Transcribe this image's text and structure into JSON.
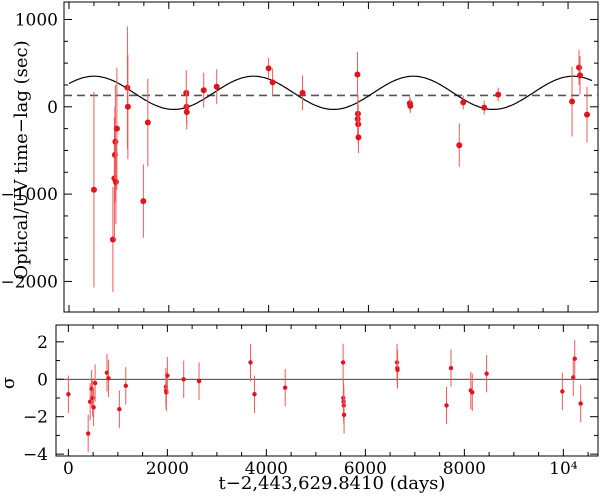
{
  "chart_data": [
    {
      "type": "scatter",
      "panel": "top",
      "xlabel": "",
      "ylabel": "Optical/UV time−lag (sec)",
      "xlim": [
        -100,
        10600
      ],
      "ylim": [
        -2350,
        1200
      ],
      "yticks": [
        1000,
        0,
        -1000,
        -2000
      ],
      "ytick_labels": [
        "1000",
        "0",
        "−1000",
        "−2000"
      ],
      "colors": {
        "points": "#e0141c",
        "error_bars": "#ee5a5a",
        "model": "#000000",
        "mean_line": "#555555"
      },
      "model_curve": {
        "style": "solid",
        "mean": 160,
        "amplitude": 190,
        "period": 3200,
        "peak_at": 3700
      },
      "mean_line": {
        "style": "dashed",
        "y": 130
      },
      "points": [
        {
          "x": 500,
          "y": -950,
          "err": 1120
        },
        {
          "x": 880,
          "y": -1520,
          "err": 600
        },
        {
          "x": 910,
          "y": -820,
          "err": 700
        },
        {
          "x": 920,
          "y": -550,
          "err": 550
        },
        {
          "x": 930,
          "y": -400,
          "err": 650
        },
        {
          "x": 940,
          "y": -860,
          "err": 480
        },
        {
          "x": 960,
          "y": -250,
          "err": 700
        },
        {
          "x": 1170,
          "y": 220,
          "err": 700
        },
        {
          "x": 1180,
          "y": 0,
          "err": 600
        },
        {
          "x": 1490,
          "y": -1080,
          "err": 420
        },
        {
          "x": 1580,
          "y": -180,
          "err": 500
        },
        {
          "x": 2350,
          "y": 160,
          "err": 260
        },
        {
          "x": 2355,
          "y": 0,
          "err": 200
        },
        {
          "x": 2360,
          "y": -60,
          "err": 200
        },
        {
          "x": 2700,
          "y": 190,
          "err": 200
        },
        {
          "x": 2960,
          "y": 230,
          "err": 200
        },
        {
          "x": 4000,
          "y": 440,
          "err": 120
        },
        {
          "x": 4080,
          "y": 280,
          "err": 160
        },
        {
          "x": 4680,
          "y": 160,
          "err": 200
        },
        {
          "x": 5780,
          "y": 370,
          "err": 260
        },
        {
          "x": 5785,
          "y": -140,
          "err": 220
        },
        {
          "x": 5790,
          "y": -80,
          "err": 220
        },
        {
          "x": 5795,
          "y": -200,
          "err": 220
        },
        {
          "x": 5800,
          "y": -350,
          "err": 180
        },
        {
          "x": 6830,
          "y": 40,
          "err": 80
        },
        {
          "x": 6840,
          "y": 10,
          "err": 80
        },
        {
          "x": 7820,
          "y": -440,
          "err": 250
        },
        {
          "x": 7900,
          "y": 50,
          "err": 80
        },
        {
          "x": 8320,
          "y": -10,
          "err": 80
        },
        {
          "x": 8600,
          "y": 140,
          "err": 80
        },
        {
          "x": 10080,
          "y": 60,
          "err": 400
        },
        {
          "x": 10220,
          "y": 450,
          "err": 200
        },
        {
          "x": 10240,
          "y": 360,
          "err": 220
        },
        {
          "x": 10380,
          "y": -90,
          "err": 320
        }
      ]
    },
    {
      "type": "scatter",
      "panel": "bottom",
      "xlabel": "t−2,443,629.8410 (days)",
      "ylabel": "σ",
      "xlim": [
        -250,
        10700
      ],
      "ylim": [
        -4.1,
        2.9
      ],
      "xticks": [
        0,
        2000,
        4000,
        6000,
        8000,
        10000
      ],
      "xtick_labels": [
        "0",
        "2000",
        "4000",
        "6000",
        "8000",
        "10⁴"
      ],
      "yticks": [
        2,
        0,
        -2,
        -4
      ],
      "ytick_labels": [
        "2",
        "0",
        "−2",
        "−4"
      ],
      "zero_line": 0,
      "colors": {
        "points": "#e0141c",
        "error_bars": "#ee5a5a",
        "zero_line": "#000000"
      },
      "points": [
        {
          "x": 0,
          "y": -0.8
        },
        {
          "x": 400,
          "y": -2.9
        },
        {
          "x": 440,
          "y": -1.2
        },
        {
          "x": 470,
          "y": -0.5
        },
        {
          "x": 490,
          "y": -1.0
        },
        {
          "x": 510,
          "y": -1.5
        },
        {
          "x": 540,
          "y": -0.2
        },
        {
          "x": 780,
          "y": 0.35
        },
        {
          "x": 810,
          "y": 0.05
        },
        {
          "x": 1030,
          "y": -1.6
        },
        {
          "x": 1160,
          "y": -0.35
        },
        {
          "x": 1970,
          "y": -0.4
        },
        {
          "x": 1975,
          "y": -0.6
        },
        {
          "x": 1980,
          "y": -0.7
        },
        {
          "x": 2000,
          "y": 0.2
        },
        {
          "x": 2330,
          "y": 0.0
        },
        {
          "x": 2640,
          "y": -0.1
        },
        {
          "x": 3680,
          "y": 0.9
        },
        {
          "x": 3760,
          "y": -0.8
        },
        {
          "x": 4380,
          "y": -0.45
        },
        {
          "x": 5550,
          "y": 0.9
        },
        {
          "x": 5555,
          "y": -1.0
        },
        {
          "x": 5560,
          "y": -1.2
        },
        {
          "x": 5565,
          "y": -1.4
        },
        {
          "x": 5570,
          "y": -1.9
        },
        {
          "x": 6640,
          "y": 0.9
        },
        {
          "x": 6645,
          "y": 0.6
        },
        {
          "x": 6650,
          "y": 0.5
        },
        {
          "x": 7640,
          "y": -1.4
        },
        {
          "x": 7730,
          "y": 0.6
        },
        {
          "x": 8130,
          "y": -0.6
        },
        {
          "x": 8160,
          "y": -0.7
        },
        {
          "x": 8450,
          "y": 0.3
        },
        {
          "x": 9980,
          "y": -0.65
        },
        {
          "x": 10200,
          "y": 0.1
        },
        {
          "x": 10230,
          "y": 1.1
        },
        {
          "x": 10350,
          "y": -1.3
        }
      ],
      "error": 1.0
    }
  ]
}
